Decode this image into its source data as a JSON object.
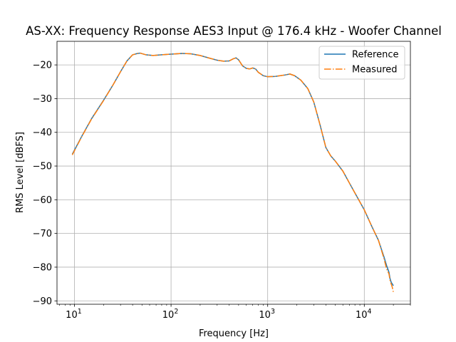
{
  "chart_data": {
    "type": "line",
    "title": "AS-XX: Frequency Response AES3 Input @ 176.4 kHz - Woofer Channel",
    "xlabel": "Frequency [Hz]",
    "ylabel": "RMS Level [dBFS]",
    "xscale": "log",
    "xlim": [
      6.6,
      30000
    ],
    "ylim": [
      -91,
      -13
    ],
    "xticks": [
      {
        "value": 10,
        "base": "10",
        "exp": "1"
      },
      {
        "value": 100,
        "base": "10",
        "exp": "2"
      },
      {
        "value": 1000,
        "base": "10",
        "exp": "3"
      },
      {
        "value": 10000,
        "base": "10",
        "exp": "4"
      }
    ],
    "yticks": [
      -20,
      -30,
      -40,
      -50,
      -60,
      -70,
      -80,
      -90
    ],
    "ytick_labels": [
      "−20",
      "−30",
      "−40",
      "−50",
      "−60",
      "−70",
      "−80",
      "−90"
    ],
    "grid": true,
    "legend_position": "top-right",
    "series": [
      {
        "name": "Reference",
        "color": "#1f77b4",
        "style": "solid",
        "x": [
          9.5,
          12,
          15,
          20,
          25,
          30,
          35,
          40,
          45,
          48,
          55,
          65,
          80,
          100,
          130,
          160,
          200,
          250,
          300,
          350,
          400,
          440,
          470,
          500,
          550,
          600,
          650,
          700,
          750,
          800,
          900,
          1000,
          1200,
          1500,
          1700,
          1900,
          2200,
          2600,
          3000,
          3500,
          4000,
          4500,
          5000,
          6000,
          7000,
          8000,
          10000,
          12000,
          14000,
          16000,
          17000,
          18000,
          18500,
          19000,
          19500,
          20000
        ],
        "y": [
          -46.5,
          -41,
          -36,
          -30.5,
          -26,
          -22,
          -18.8,
          -17,
          -16.6,
          -16.5,
          -17,
          -17.2,
          -17,
          -16.8,
          -16.6,
          -16.7,
          -17.2,
          -18,
          -18.6,
          -18.9,
          -18.8,
          -18.2,
          -17.9,
          -18.5,
          -20.3,
          -21,
          -21.2,
          -20.9,
          -21.2,
          -22.2,
          -23.2,
          -23.5,
          -23.4,
          -23,
          -22.7,
          -23.2,
          -24.5,
          -27,
          -31,
          -38,
          -44.5,
          -47,
          -48.5,
          -51.5,
          -55,
          -58,
          -63,
          -68,
          -72,
          -77,
          -79.5,
          -81.5,
          -83.5,
          -84.5,
          -85,
          -85.5
        ]
      },
      {
        "name": "Measured",
        "color": "#ff7f0e",
        "style": "dashdot",
        "x": [
          9.5,
          12,
          15,
          20,
          25,
          30,
          35,
          40,
          45,
          48,
          55,
          65,
          80,
          100,
          130,
          160,
          200,
          250,
          300,
          350,
          400,
          440,
          470,
          500,
          550,
          600,
          650,
          700,
          750,
          800,
          900,
          1000,
          1200,
          1500,
          1700,
          1900,
          2200,
          2600,
          3000,
          3500,
          4000,
          4500,
          5000,
          6000,
          7000,
          8000,
          10000,
          12000,
          14000,
          16000,
          17000,
          18000,
          18500,
          19000,
          19500,
          20000
        ],
        "y": [
          -46.7,
          -41.1,
          -36.1,
          -30.6,
          -26,
          -22,
          -18.8,
          -17,
          -16.6,
          -16.5,
          -17,
          -17.2,
          -17,
          -16.8,
          -16.6,
          -16.7,
          -17.2,
          -18,
          -18.6,
          -18.9,
          -18.8,
          -18.2,
          -17.9,
          -18.5,
          -20.3,
          -21,
          -21.2,
          -20.9,
          -21.2,
          -22.2,
          -23.2,
          -23.5,
          -23.4,
          -23,
          -22.7,
          -23.2,
          -24.5,
          -27,
          -31,
          -38,
          -44.5,
          -47,
          -48.5,
          -51.5,
          -55,
          -58,
          -63,
          -68,
          -72,
          -77.5,
          -80.5,
          -82,
          -84,
          -85,
          -86,
          -87.5
        ]
      }
    ]
  }
}
